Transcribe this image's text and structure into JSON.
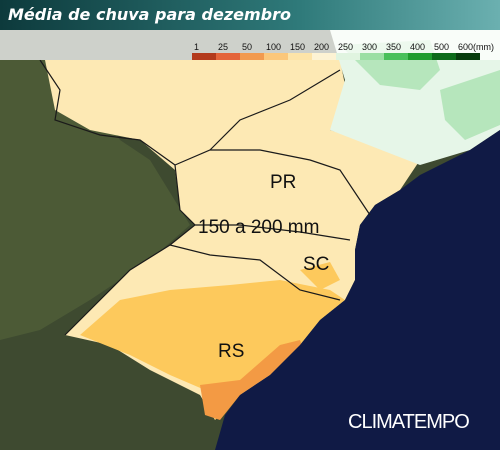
{
  "title": "Média de chuva para dezembro",
  "legend": {
    "items": [
      {
        "label": "1",
        "color": "#b33a1c"
      },
      {
        "label": "25",
        "color": "#e4643a"
      },
      {
        "label": "50",
        "color": "#f29a4e"
      },
      {
        "label": "100",
        "color": "#fbc77a"
      },
      {
        "label": "150",
        "color": "#fde4a8"
      },
      {
        "label": "200",
        "color": "#fdf3d4"
      },
      {
        "label": "250",
        "color": "#e0f4e0"
      },
      {
        "label": "300",
        "color": "#9adfa3"
      },
      {
        "label": "350",
        "color": "#48c05a"
      },
      {
        "label": "400",
        "color": "#1f9d2e"
      },
      {
        "label": "500",
        "color": "#0d6b1a"
      },
      {
        "label": "600(mm)",
        "color": "#083d0e"
      }
    ]
  },
  "map_labels": [
    "PR",
    "150 a 200 mm",
    "SC",
    "RS"
  ],
  "brand": "CLIMATEMPO"
}
